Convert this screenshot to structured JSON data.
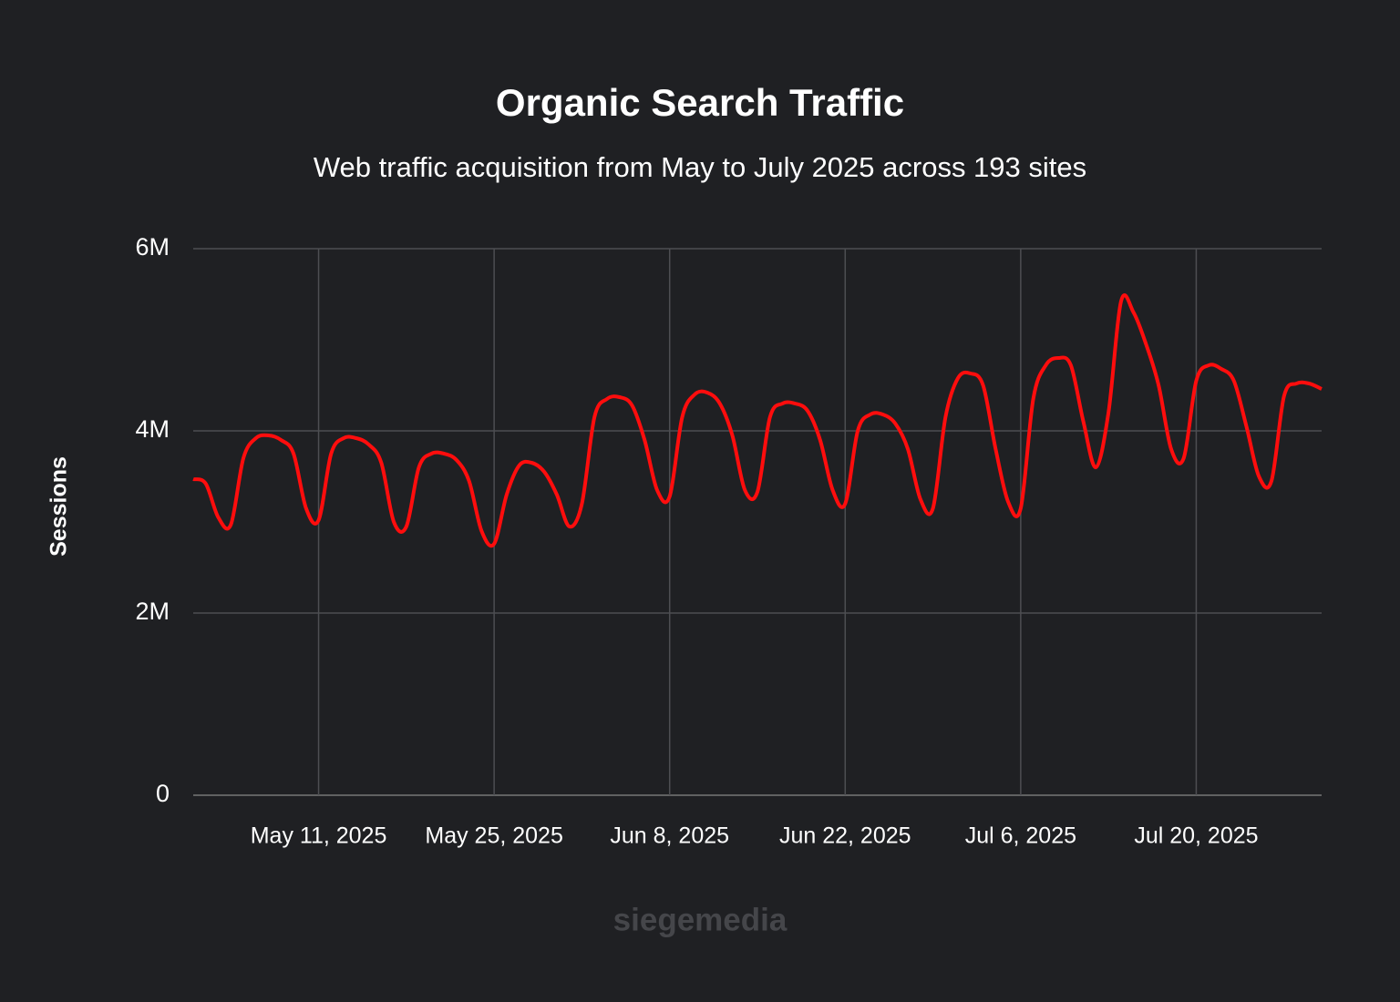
{
  "chart_data": {
    "type": "line",
    "title": "Organic Search Traffic",
    "subtitle": "Web traffic acquisition from May to July 2025 across 193 sites",
    "y_label": "Sessions",
    "watermark": "siegemedia",
    "x": [
      "2025-05-01",
      "2025-05-02",
      "2025-05-03",
      "2025-05-04",
      "2025-05-05",
      "2025-05-06",
      "2025-05-07",
      "2025-05-08",
      "2025-05-09",
      "2025-05-10",
      "2025-05-11",
      "2025-05-12",
      "2025-05-13",
      "2025-05-14",
      "2025-05-15",
      "2025-05-16",
      "2025-05-17",
      "2025-05-18",
      "2025-05-19",
      "2025-05-20",
      "2025-05-21",
      "2025-05-22",
      "2025-05-23",
      "2025-05-24",
      "2025-05-25",
      "2025-05-26",
      "2025-05-27",
      "2025-05-28",
      "2025-05-29",
      "2025-05-30",
      "2025-05-31",
      "2025-06-01",
      "2025-06-02",
      "2025-06-03",
      "2025-06-04",
      "2025-06-05",
      "2025-06-06",
      "2025-06-07",
      "2025-06-08",
      "2025-06-09",
      "2025-06-10",
      "2025-06-11",
      "2025-06-12",
      "2025-06-13",
      "2025-06-14",
      "2025-06-15",
      "2025-06-16",
      "2025-06-17",
      "2025-06-18",
      "2025-06-19",
      "2025-06-20",
      "2025-06-21",
      "2025-06-22",
      "2025-06-23",
      "2025-06-24",
      "2025-06-25",
      "2025-06-26",
      "2025-06-27",
      "2025-06-28",
      "2025-06-29",
      "2025-06-30",
      "2025-07-01",
      "2025-07-02",
      "2025-07-03",
      "2025-07-04",
      "2025-07-05",
      "2025-07-06",
      "2025-07-07",
      "2025-07-08",
      "2025-07-09",
      "2025-07-10",
      "2025-07-11",
      "2025-07-12",
      "2025-07-13",
      "2025-07-14",
      "2025-07-15",
      "2025-07-16",
      "2025-07-17",
      "2025-07-18",
      "2025-07-19",
      "2025-07-20",
      "2025-07-21",
      "2025-07-22",
      "2025-07-23",
      "2025-07-24",
      "2025-07-25",
      "2025-07-26",
      "2025-07-27",
      "2025-07-28",
      "2025-07-29",
      "2025-07-30"
    ],
    "series": [
      {
        "name": "Sessions",
        "color": "#ff0d0d",
        "values": [
          3470000,
          3420000,
          3050000,
          2970000,
          3700000,
          3920000,
          3950000,
          3900000,
          3750000,
          3150000,
          3020000,
          3750000,
          3920000,
          3920000,
          3850000,
          3650000,
          3000000,
          2950000,
          3600000,
          3750000,
          3750000,
          3680000,
          3450000,
          2900000,
          2760000,
          3300000,
          3620000,
          3650000,
          3550000,
          3300000,
          2950000,
          3200000,
          4150000,
          4350000,
          4370000,
          4280000,
          3900000,
          3350000,
          3280000,
          4150000,
          4400000,
          4420000,
          4300000,
          3950000,
          3350000,
          3330000,
          4150000,
          4300000,
          4300000,
          4220000,
          3900000,
          3350000,
          3200000,
          4000000,
          4180000,
          4180000,
          4080000,
          3800000,
          3250000,
          3150000,
          4150000,
          4580000,
          4630000,
          4500000,
          3800000,
          3220000,
          3150000,
          4350000,
          4720000,
          4800000,
          4720000,
          4100000,
          3600000,
          4200000,
          5420000,
          5300000,
          4950000,
          4500000,
          3800000,
          3700000,
          4550000,
          4720000,
          4680000,
          4550000,
          4050000,
          3500000,
          3450000,
          4380000,
          4520000,
          4520000,
          4460000
        ]
      }
    ],
    "xlim": [
      "2025-05-01",
      "2025-07-30"
    ],
    "xticks": [
      {
        "value": "2025-05-11",
        "label": "May 11, 2025"
      },
      {
        "value": "2025-05-25",
        "label": "May 25, 2025"
      },
      {
        "value": "2025-06-08",
        "label": "Jun 8, 2025"
      },
      {
        "value": "2025-06-22",
        "label": "Jun 22, 2025"
      },
      {
        "value": "2025-07-06",
        "label": "Jul 6, 2025"
      },
      {
        "value": "2025-07-20",
        "label": "Jul 20, 2025"
      }
    ],
    "ylim": [
      0,
      6000000
    ],
    "yticks": [
      0,
      {
        "value": 2000000,
        "label": "2M"
      },
      {
        "value": 4000000,
        "label": "4M"
      },
      {
        "value": 6000000,
        "label": "6M"
      }
    ],
    "grid": true
  }
}
